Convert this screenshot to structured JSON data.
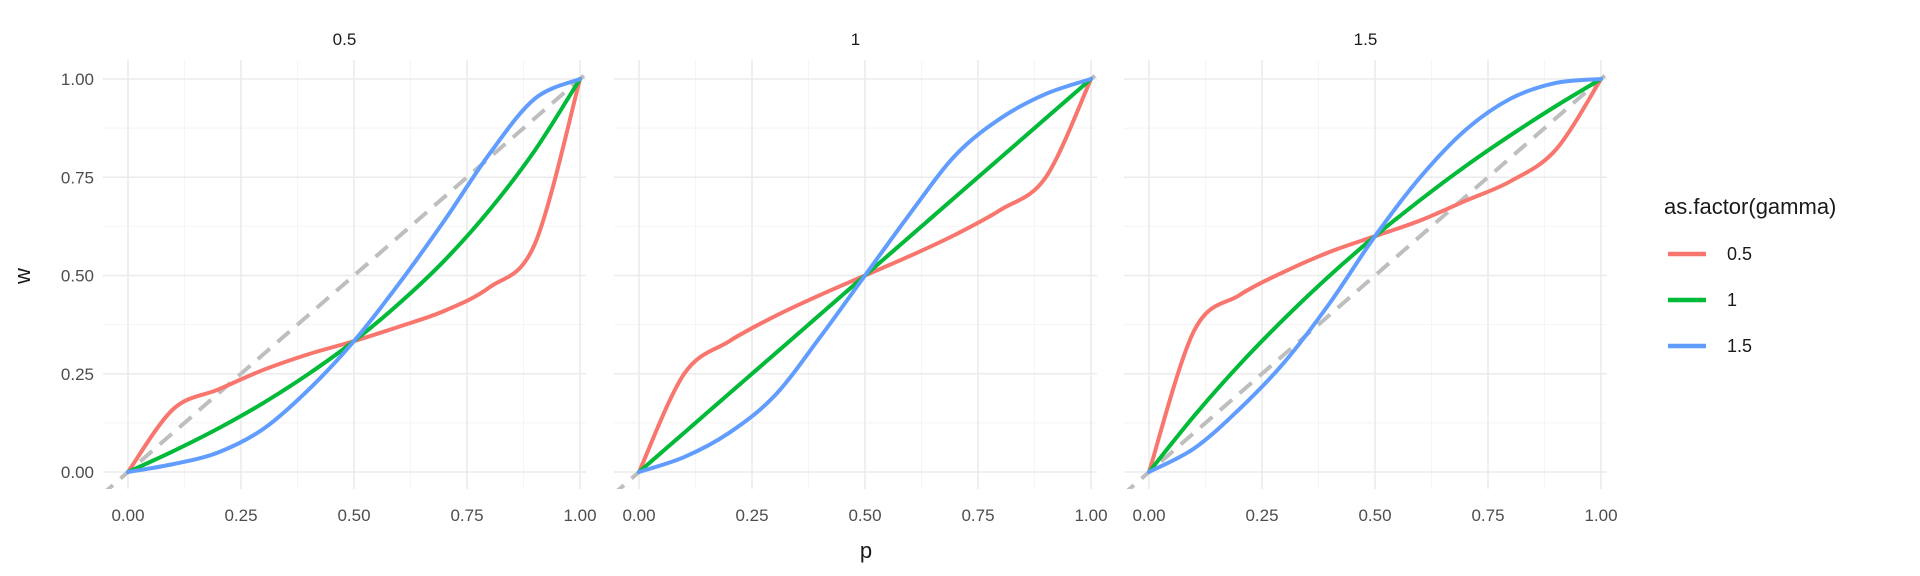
{
  "chart_data": {
    "type": "line",
    "xlabel": "p",
    "ylabel": "w",
    "xlim": [
      0,
      1
    ],
    "ylim": [
      0,
      1
    ],
    "x_ticks": [
      "0.00",
      "0.25",
      "0.50",
      "0.75",
      "1.00"
    ],
    "y_ticks": [
      "0.00",
      "0.25",
      "0.50",
      "0.75",
      "1.00"
    ],
    "grid": true,
    "legend": {
      "title": "as.factor(gamma)",
      "placement": "right",
      "entries": [
        {
          "label": "0.5",
          "color": "#F8766D"
        },
        {
          "label": "1",
          "color": "#00BA38"
        },
        {
          "label": "1.5",
          "color": "#619CFF"
        }
      ]
    },
    "reference_line": {
      "type": "identity",
      "style": "dashed",
      "color": "#BEBEBE"
    },
    "panels": [
      {
        "title": "0.5",
        "x": [
          0,
          0.1,
          0.2,
          0.3,
          0.4,
          0.5,
          0.6,
          0.7,
          0.8,
          0.9,
          1
        ],
        "series": [
          {
            "name": "0.5",
            "values": [
              0,
              0.16,
              0.21,
              0.26,
              0.3,
              0.333,
              0.37,
              0.41,
              0.47,
              0.58,
              1
            ]
          },
          {
            "name": "1",
            "values": [
              0,
              0.053,
              0.111,
              0.176,
              0.25,
              0.333,
              0.429,
              0.538,
              0.667,
              0.818,
              1
            ]
          },
          {
            "name": "1.5",
            "values": [
              0,
              0.02,
              0.05,
              0.11,
              0.21,
              0.333,
              0.48,
              0.64,
              0.81,
              0.95,
              1
            ]
          }
        ]
      },
      {
        "title": "1",
        "x": [
          0,
          0.1,
          0.2,
          0.3,
          0.4,
          0.5,
          0.6,
          0.7,
          0.8,
          0.9,
          1
        ],
        "series": [
          {
            "name": "0.5",
            "values": [
              0,
              0.25,
              0.333,
              0.396,
              0.45,
              0.5,
              0.55,
              0.604,
              0.667,
              0.75,
              1
            ]
          },
          {
            "name": "1",
            "values": [
              0,
              0.1,
              0.2,
              0.3,
              0.4,
              0.5,
              0.6,
              0.7,
              0.8,
              0.9,
              1
            ]
          },
          {
            "name": "1.5",
            "values": [
              0,
              0.038,
              0.1,
              0.194,
              0.342,
              0.5,
              0.658,
              0.806,
              0.9,
              0.962,
              1
            ]
          }
        ]
      },
      {
        "title": "1.5",
        "x": [
          0,
          0.1,
          0.2,
          0.3,
          0.4,
          0.5,
          0.6,
          0.7,
          0.8,
          0.9,
          1
        ],
        "series": [
          {
            "name": "0.5",
            "values": [
              0,
              0.36,
              0.45,
              0.51,
              0.56,
              0.6,
              0.64,
              0.69,
              0.74,
              0.82,
              1
            ]
          },
          {
            "name": "1",
            "values": [
              0,
              0.143,
              0.273,
              0.391,
              0.5,
              0.6,
              0.692,
              0.778,
              0.857,
              0.931,
              1
            ]
          },
          {
            "name": "1.5",
            "values": [
              0,
              0.06,
              0.16,
              0.28,
              0.43,
              0.6,
              0.75,
              0.87,
              0.95,
              0.99,
              1
            ]
          }
        ]
      }
    ]
  }
}
